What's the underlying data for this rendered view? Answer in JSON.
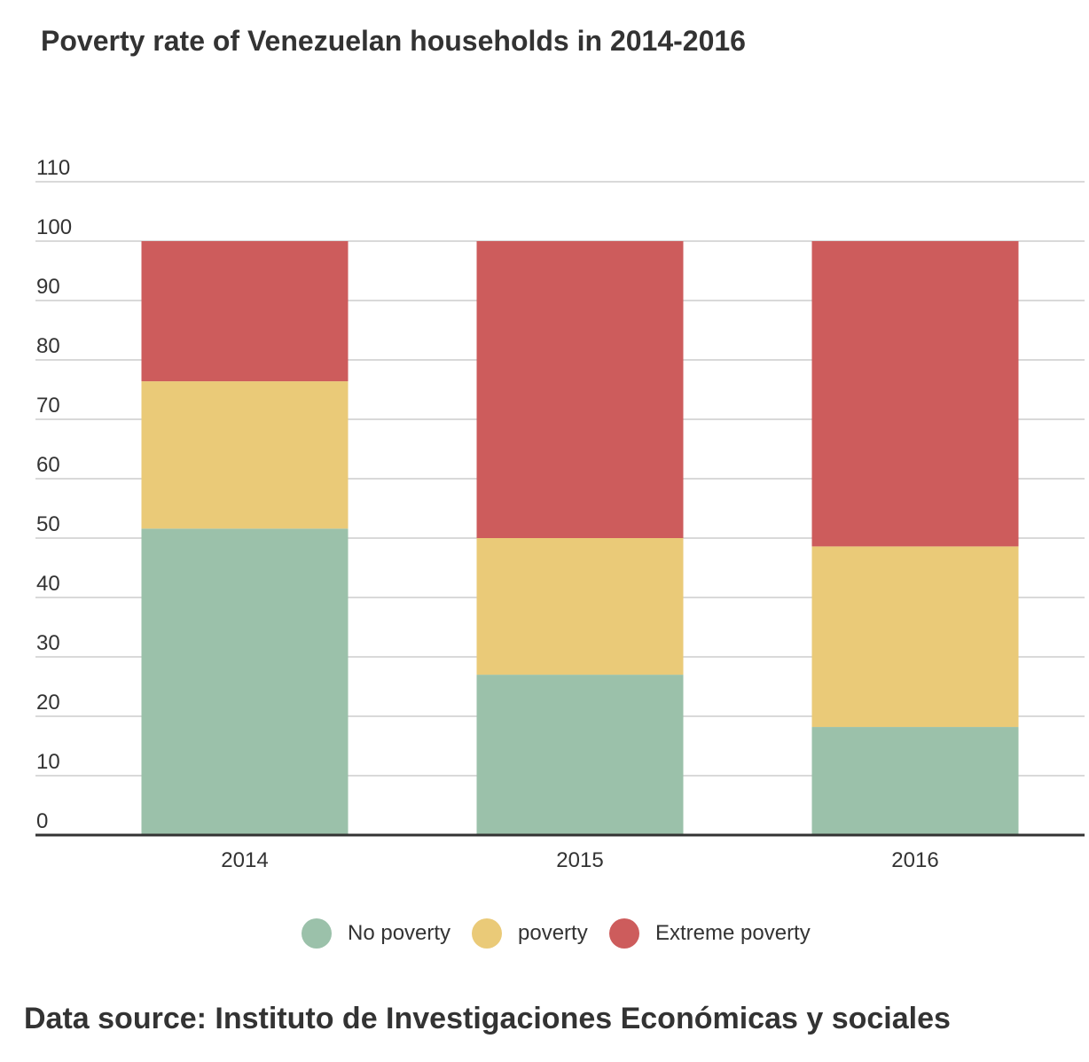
{
  "title": "Poverty rate of Venezuelan households in 2014-2016",
  "source": "Data source: Instituto de Investigaciones Económicas y sociales",
  "colors": {
    "no_poverty": "#9bc1aa",
    "poverty": "#eaca78",
    "extreme_poverty": "#cd5c5c",
    "grid": "#d9d9d9",
    "axis": "#333333"
  },
  "legend": [
    {
      "label": "No poverty",
      "color": "#9bc1aa"
    },
    {
      "label": "poverty",
      "color": "#eaca78"
    },
    {
      "label": "Extreme poverty",
      "color": "#cd5c5c"
    }
  ],
  "chart_data": {
    "type": "bar",
    "stacked": true,
    "title": "Poverty rate of Venezuelan households in 2014-2016",
    "categories": [
      "2014",
      "2015",
      "2016"
    ],
    "series": [
      {
        "name": "No poverty",
        "color": "#9bc1aa",
        "values": [
          51.6,
          27.0,
          18.2
        ]
      },
      {
        "name": "poverty",
        "color": "#eaca78",
        "values": [
          24.8,
          23.0,
          30.4
        ]
      },
      {
        "name": "Extreme poverty",
        "color": "#cd5c5c",
        "values": [
          23.6,
          50.0,
          51.4
        ]
      }
    ],
    "ylim": [
      0,
      110
    ],
    "yticks": [
      0,
      10,
      20,
      30,
      40,
      50,
      60,
      70,
      80,
      90,
      100,
      110
    ],
    "grid": true,
    "legend_position": "bottom"
  }
}
